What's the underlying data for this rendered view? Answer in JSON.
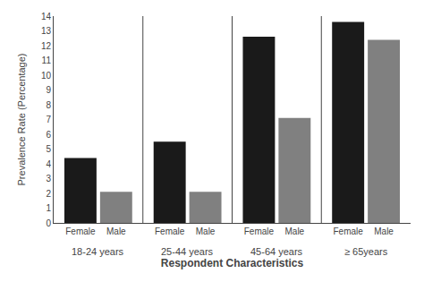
{
  "chart_data": {
    "type": "bar",
    "categories": [
      "18-24 years",
      "25-44 years",
      "45-64 years",
      "≥ 65years"
    ],
    "series": [
      {
        "name": "Female",
        "color": "#1a1a1a",
        "values": [
          4.4,
          5.5,
          12.6,
          13.6
        ]
      },
      {
        "name": "Male",
        "color": "#808080",
        "values": [
          2.1,
          2.1,
          7.1,
          12.4
        ]
      }
    ],
    "x_label": "Respondent Characteristics",
    "y_label": "Prevalence Rate (Percentage)",
    "ylim": [
      0,
      14
    ],
    "yticks": [
      0,
      1,
      2,
      3,
      4,
      5,
      6,
      7,
      8,
      9,
      10,
      11,
      12,
      13,
      14
    ],
    "grid": false
  }
}
